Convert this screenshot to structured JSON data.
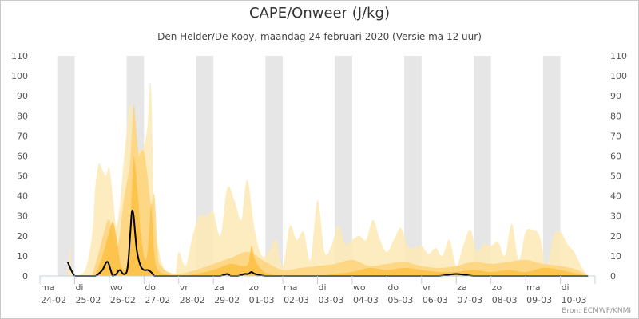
{
  "title": "CAPE/Onweer (J/kg)",
  "subtitle": "Den Helder/De Kooy, maandag 24 februari 2020 (Versie ma 12 uur)",
  "credit": "Bron: ECMWF/KNMI",
  "colors": {
    "band_outer": "#fde9b4",
    "band_mid": "#fdd47a",
    "band_inner": "#fcbf43",
    "line": "#000000",
    "day_shade": "#e6e6e6",
    "axis": "#c0d0e0"
  },
  "chart_data": {
    "type": "area",
    "title": "CAPE/Onweer (J/kg)",
    "subtitle": "Den Helder/De Kooy, maandag 24 februari 2020 (Versie ma 12 uur)",
    "ylim": [
      0,
      110
    ],
    "yticks": [
      0,
      10,
      20,
      30,
      40,
      50,
      60,
      70,
      80,
      90,
      100,
      110
    ],
    "y_axis_both_sides": true,
    "grid": false,
    "day_labels": [
      {
        "day": "ma",
        "date": "24-02"
      },
      {
        "day": "di",
        "date": "25-02"
      },
      {
        "day": "wo",
        "date": "26-02"
      },
      {
        "day": "do",
        "date": "27-02"
      },
      {
        "day": "vr",
        "date": "28-02"
      },
      {
        "day": "za",
        "date": "29-02"
      },
      {
        "day": "zo",
        "date": "01-03"
      },
      {
        "day": "ma",
        "date": "02-03"
      },
      {
        "day": "di",
        "date": "03-03"
      },
      {
        "day": "wo",
        "date": "04-03"
      },
      {
        "day": "do",
        "date": "05-03"
      },
      {
        "day": "vr",
        "date": "06-03"
      },
      {
        "day": "za",
        "date": "07-03"
      },
      {
        "day": "zo",
        "date": "08-03"
      },
      {
        "day": "ma",
        "date": "09-03"
      },
      {
        "day": "di",
        "date": "10-03"
      }
    ],
    "x_unit": "days after 24-02 00h",
    "series": [
      {
        "role": "outer band (upper)",
        "x": [
          0.8,
          0.86,
          0.9,
          1.0,
          1.3,
          1.5,
          1.6,
          1.7,
          1.8,
          1.9,
          2.0,
          2.1,
          2.2,
          2.3,
          2.4,
          2.5,
          2.6,
          2.7,
          2.75,
          2.8,
          2.9,
          3.0,
          3.1,
          3.2,
          3.3,
          3.4,
          3.5,
          3.6,
          3.7,
          3.8,
          3.9,
          4.0,
          4.2,
          4.4,
          4.6,
          4.8,
          5.0,
          5.2,
          5.4,
          5.6,
          5.8,
          5.9,
          6.0,
          6.2,
          6.4,
          6.6,
          6.8,
          7.0,
          7.2,
          7.4,
          7.6,
          7.8,
          8.0,
          8.2,
          8.4,
          8.6,
          8.8,
          9.0,
          9.2,
          9.4,
          9.6,
          9.8,
          10.0,
          10.2,
          10.4,
          10.6,
          10.8,
          11.0,
          11.2,
          11.4,
          11.6,
          11.8,
          12.0,
          12.2,
          12.4,
          12.6,
          12.8,
          13.0,
          13.2,
          13.4,
          13.6,
          13.8,
          14.0,
          14.2,
          14.4,
          14.6,
          14.8,
          15.0,
          15.2,
          15.4,
          15.6,
          15.8
        ],
        "values": [
          0,
          14,
          3,
          0,
          3,
          20,
          45,
          56,
          53,
          50,
          54,
          40,
          25,
          35,
          55,
          72,
          86,
          75,
          64,
          62,
          63,
          65,
          75,
          95,
          25,
          15,
          7,
          3,
          1,
          0,
          0,
          12,
          5,
          20,
          30,
          30,
          32,
          20,
          44,
          38,
          28,
          42,
          47,
          22,
          10,
          12,
          18,
          5,
          25,
          18,
          22,
          8,
          38,
          12,
          15,
          25,
          16,
          18,
          20,
          18,
          28,
          18,
          12,
          18,
          24,
          15,
          14,
          15,
          11,
          14,
          10,
          18,
          5,
          15,
          23,
          12,
          16,
          15,
          17,
          10,
          26,
          8,
          22,
          23,
          20,
          5,
          20,
          22,
          16,
          12,
          5,
          0
        ]
      },
      {
        "role": "middle band (upper)",
        "x": [
          1.5,
          1.7,
          1.9,
          2.0,
          2.1,
          2.2,
          2.3,
          2.4,
          2.5,
          2.6,
          2.7,
          2.75,
          2.8,
          2.85,
          2.9,
          3.0,
          3.1,
          3.2,
          3.3,
          3.4,
          3.5,
          3.7,
          4.0,
          4.5,
          5.0,
          5.5,
          6.0,
          6.5,
          7.0,
          7.5,
          8.0,
          8.5,
          9.0,
          9.5,
          10.0,
          10.5,
          11.0,
          11.5,
          12.0,
          12.5,
          13.0,
          13.5,
          14.0,
          14.5,
          15.0,
          15.5,
          15.8
        ],
        "values": [
          0,
          12,
          25,
          28,
          20,
          14,
          20,
          36,
          46,
          57,
          85,
          78,
          68,
          60,
          62,
          62,
          50,
          36,
          40,
          10,
          5,
          2,
          1,
          3,
          6,
          9,
          12,
          7,
          3,
          4,
          5,
          6,
          8,
          5,
          6,
          7,
          5,
          4,
          5,
          7,
          6,
          7,
          8,
          6,
          5,
          3,
          0
        ]
      },
      {
        "role": "inner band (upper)",
        "x": [
          1.6,
          1.8,
          2.0,
          2.1,
          2.2,
          2.3,
          2.4,
          2.5,
          2.55,
          2.6,
          2.65,
          2.7,
          2.75,
          2.8,
          2.85,
          2.9,
          3.0,
          3.05,
          3.1,
          3.15,
          3.2,
          3.25,
          3.3,
          3.4,
          3.6,
          4.0,
          4.5,
          5.0,
          5.5,
          5.8,
          6.0,
          6.1,
          6.2,
          6.4,
          6.6,
          7.0,
          7.5,
          8.0,
          8.5,
          9.0,
          9.5,
          10.0,
          10.5,
          11.0,
          11.5,
          12.0,
          12.5,
          13.0,
          13.5,
          14.0,
          14.5,
          15.0,
          15.5,
          15.8
        ],
        "values": [
          0,
          10,
          22,
          27,
          20,
          8,
          3,
          5,
          10,
          25,
          42,
          59,
          55,
          45,
          35,
          22,
          10,
          8,
          12,
          22,
          35,
          25,
          10,
          3,
          1,
          0,
          1,
          3,
          6,
          5,
          6,
          15,
          8,
          3,
          1,
          0,
          0,
          0,
          1,
          2,
          4,
          3,
          4,
          3,
          2,
          2,
          3,
          2,
          3,
          2,
          4,
          3,
          1,
          0
        ]
      },
      {
        "role": "main line",
        "x": [
          0.8,
          1.0,
          1.2,
          1.4,
          1.6,
          1.8,
          1.95,
          2.1,
          2.2,
          2.3,
          2.4,
          2.5,
          2.55,
          2.6,
          2.65,
          2.7,
          2.75,
          2.8,
          2.9,
          3.0,
          3.1,
          3.2,
          3.3,
          3.4,
          3.5,
          4.0,
          4.5,
          5.0,
          5.2,
          5.4,
          5.5,
          5.7,
          5.9,
          6.0,
          6.1,
          6.2,
          6.5,
          7.0,
          7.5,
          8.0,
          9.0,
          10.0,
          10.5,
          11.0,
          11.5,
          12.0,
          12.5,
          13.0,
          13.5,
          14.0,
          14.5,
          15.0,
          15.5,
          15.8
        ],
        "values": [
          7,
          0,
          0,
          0,
          0,
          3,
          7,
          0,
          1,
          3,
          1,
          2,
          8,
          20,
          32,
          30,
          20,
          12,
          5,
          3,
          3,
          2,
          0,
          0,
          0,
          0,
          0,
          0,
          0,
          1,
          0,
          0,
          1,
          1,
          2,
          1,
          0,
          0,
          0,
          0,
          0,
          0,
          0,
          0,
          0,
          1,
          0,
          0,
          0,
          0,
          0,
          0,
          0,
          0
        ]
      }
    ]
  }
}
